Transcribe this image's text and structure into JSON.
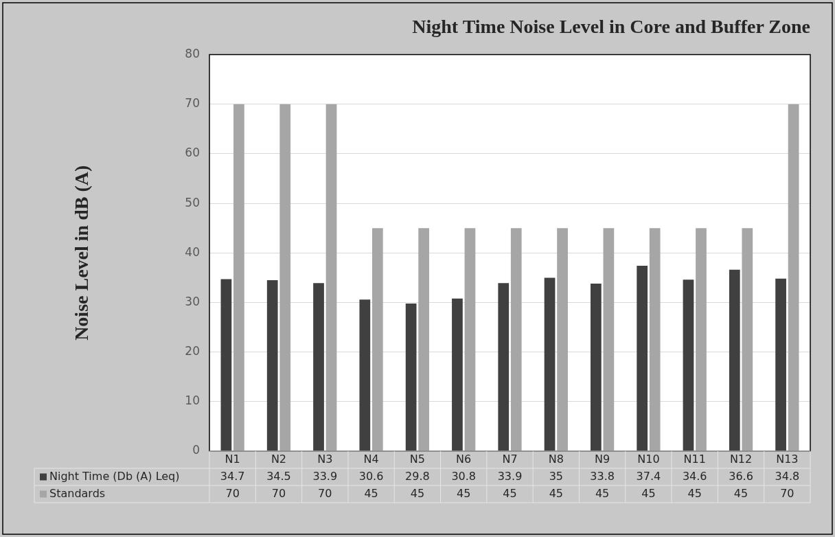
{
  "chart_data": {
    "type": "bar",
    "title": "Night Time Noise Level in Core and Buffer Zone",
    "ylabel": "Noise Level in dB (A)",
    "categories": [
      "N1",
      "N2",
      "N3",
      "N4",
      "N5",
      "N6",
      "N7",
      "N8",
      "N9",
      "N10",
      "N11",
      "N12",
      "N13"
    ],
    "series": [
      {
        "name": "Night Time (Db (A) Leq)",
        "color": "#404040",
        "values": [
          34.7,
          34.5,
          33.9,
          30.6,
          29.8,
          30.8,
          33.9,
          35,
          33.8,
          37.4,
          34.6,
          36.6,
          34.8
        ]
      },
      {
        "name": "Standards",
        "color": "#a6a6a6",
        "values": [
          70,
          70,
          70,
          45,
          45,
          45,
          45,
          45,
          45,
          45,
          45,
          45,
          70
        ]
      }
    ],
    "ylim": [
      0,
      80
    ],
    "yticks": [
      0,
      10,
      20,
      30,
      40,
      50,
      60,
      70,
      80
    ],
    "grid": "y",
    "legend": "bottom",
    "data_labels": true
  }
}
